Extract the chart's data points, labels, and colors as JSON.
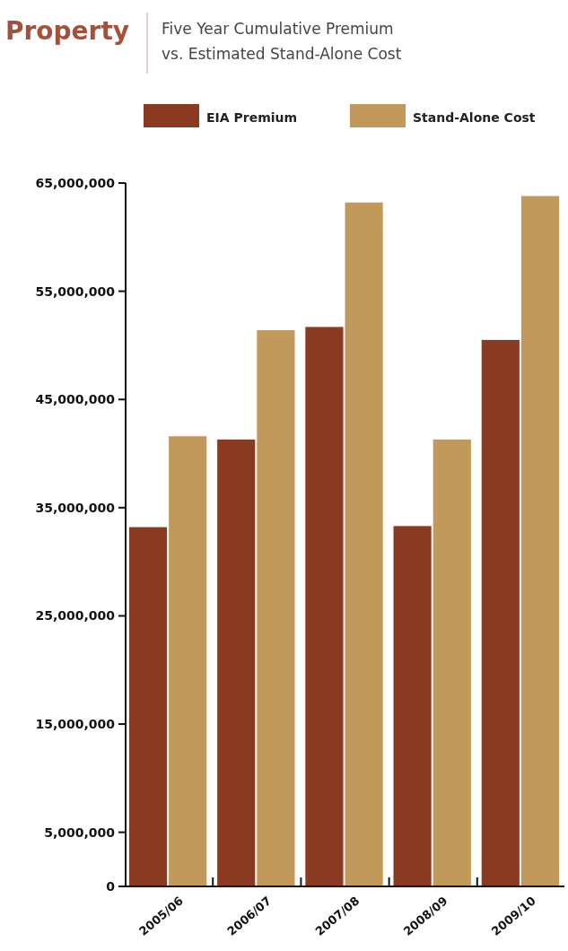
{
  "chart_data": {
    "type": "bar",
    "title": "Property",
    "subtitle": "Five Year Cumulative Premium\nvs. Estimated Stand-Alone Cost",
    "categories": [
      "2005/06",
      "2006/07",
      "2007/08",
      "2008/09",
      "2009/10"
    ],
    "series": [
      {
        "name": "EIA Premium",
        "color": "#8b3a22",
        "values": [
          33200000,
          41300000,
          51700000,
          33300000,
          50500000
        ]
      },
      {
        "name": "Stand-Alone Cost",
        "color": "#c19a5b",
        "values": [
          41600000,
          51400000,
          63200000,
          41300000,
          63800000
        ]
      }
    ],
    "ylim": [
      0,
      65000000
    ],
    "yticks": [
      {
        "value": 0,
        "label": "0"
      },
      {
        "value": 5000000,
        "label": "5,000,000"
      },
      {
        "value": 15000000,
        "label": "15,000,000"
      },
      {
        "value": 25000000,
        "label": "25,000,000"
      },
      {
        "value": 35000000,
        "label": "35,000,000"
      },
      {
        "value": 45000000,
        "label": "45,000,000"
      },
      {
        "value": 55000000,
        "label": "55,000,000"
      },
      {
        "value": 65000000,
        "label": "65,000,000"
      }
    ],
    "grid": false,
    "legend": "top"
  }
}
